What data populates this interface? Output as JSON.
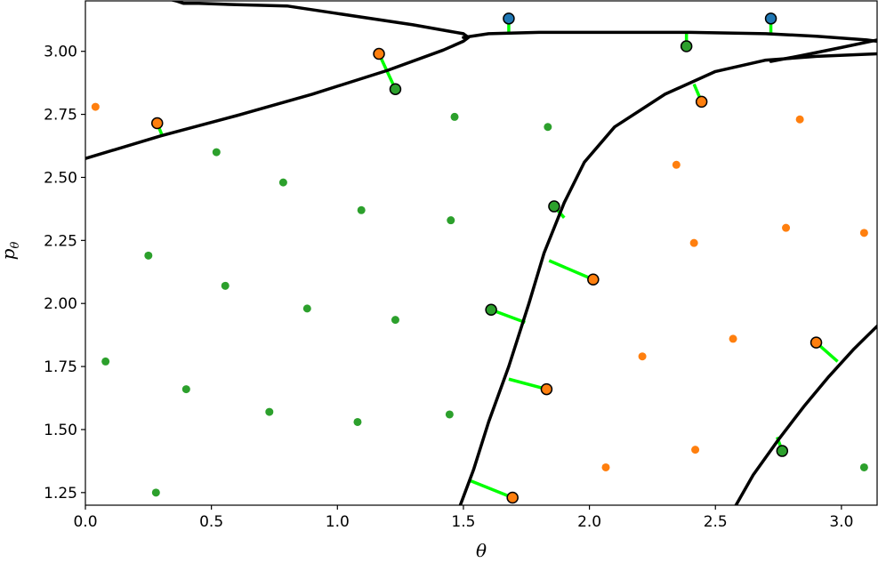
{
  "chart_data": {
    "type": "scatter",
    "xlabel": "θ",
    "ylabel": "p",
    "ylabel_sub": "θ",
    "xlim": [
      0.0,
      3.1416
    ],
    "ylim": [
      1.2,
      3.2
    ],
    "xticks": [
      0.0,
      0.5,
      1.0,
      1.5,
      2.0,
      2.5,
      3.0
    ],
    "xtick_labels": [
      "0.0",
      "0.5",
      "1.0",
      "1.5",
      "2.0",
      "2.5",
      "3.0"
    ],
    "yticks": [
      1.25,
      1.5,
      1.75,
      2.0,
      2.25,
      2.5,
      2.75,
      3.0
    ],
    "ytick_labels": [
      "1.25",
      "1.50",
      "1.75",
      "2.00",
      "2.25",
      "2.50",
      "2.75",
      "3.00"
    ],
    "grid": false,
    "colors": {
      "green": "#2ca02c",
      "orange": "#ff7f0e",
      "blue": "#1f77b4",
      "boundary": "#000000",
      "projection": "#00ff00"
    },
    "series": [
      {
        "role": "small-green",
        "points": [
          [
            0.08,
            1.77
          ],
          [
            0.25,
            2.19
          ],
          [
            0.28,
            1.25
          ],
          [
            0.4,
            1.66
          ],
          [
            0.52,
            2.6
          ],
          [
            0.555,
            2.07
          ],
          [
            0.73,
            1.57
          ],
          [
            0.785,
            2.48
          ],
          [
            0.88,
            1.98
          ],
          [
            1.08,
            1.53
          ],
          [
            1.095,
            2.37
          ],
          [
            1.23,
            1.935
          ],
          [
            1.445,
            1.56
          ],
          [
            1.45,
            2.33
          ],
          [
            1.465,
            2.74
          ],
          [
            1.835,
            2.7
          ],
          [
            3.09,
            1.35
          ]
        ]
      },
      {
        "role": "small-orange",
        "points": [
          [
            0.04,
            2.78
          ],
          [
            2.065,
            1.35
          ],
          [
            2.21,
            1.79
          ],
          [
            2.345,
            2.55
          ],
          [
            2.415,
            2.24
          ],
          [
            2.42,
            1.42
          ],
          [
            2.57,
            1.86
          ],
          [
            2.78,
            2.3
          ],
          [
            2.835,
            2.73
          ],
          [
            3.09,
            2.28
          ]
        ]
      },
      {
        "role": "outlined-orange",
        "points": [
          [
            0.285,
            2.715
          ],
          [
            1.165,
            2.99
          ],
          [
            2.445,
            2.8
          ],
          [
            2.015,
            2.095
          ],
          [
            1.83,
            1.66
          ],
          [
            1.695,
            1.23
          ],
          [
            2.9,
            1.845
          ]
        ]
      },
      {
        "role": "outlined-green",
        "points": [
          [
            1.23,
            2.85
          ],
          [
            2.385,
            3.02
          ],
          [
            1.86,
            2.385
          ],
          [
            1.61,
            1.975
          ],
          [
            2.765,
            1.415
          ]
        ]
      },
      {
        "role": "outlined-blue",
        "points": [
          [
            1.68,
            3.13
          ],
          [
            2.72,
            3.13
          ]
        ]
      }
    ],
    "projections": [
      [
        [
          0.285,
          2.715
        ],
        [
          0.305,
          2.665
        ]
      ],
      [
        [
          1.165,
          2.99
        ],
        [
          1.23,
          2.85
        ]
      ],
      [
        [
          1.68,
          3.13
        ],
        [
          1.68,
          3.075
        ]
      ],
      [
        [
          2.72,
          3.13
        ],
        [
          2.72,
          3.07
        ]
      ],
      [
        [
          2.385,
          3.02
        ],
        [
          2.385,
          3.07
        ]
      ],
      [
        [
          2.445,
          2.8
        ],
        [
          2.415,
          2.87
        ]
      ],
      [
        [
          1.86,
          2.385
        ],
        [
          1.9,
          2.34
        ]
      ],
      [
        [
          2.015,
          2.095
        ],
        [
          1.84,
          2.17
        ]
      ],
      [
        [
          1.61,
          1.975
        ],
        [
          1.745,
          1.925
        ]
      ],
      [
        [
          1.83,
          1.66
        ],
        [
          1.68,
          1.7
        ]
      ],
      [
        [
          1.695,
          1.23
        ],
        [
          1.52,
          1.3
        ]
      ],
      [
        [
          2.9,
          1.845
        ],
        [
          2.985,
          1.77
        ]
      ],
      [
        [
          2.765,
          1.415
        ],
        [
          2.745,
          1.47
        ]
      ]
    ],
    "boundaries": [
      [
        [
          0.0,
          2.575
        ],
        [
          0.3,
          2.665
        ],
        [
          0.6,
          2.745
        ],
        [
          0.9,
          2.83
        ],
        [
          1.2,
          2.925
        ],
        [
          1.42,
          3.005
        ],
        [
          1.5,
          3.04
        ],
        [
          1.52,
          3.055
        ],
        [
          1.5,
          3.07
        ],
        [
          1.3,
          3.105
        ],
        [
          1.0,
          3.15
        ],
        [
          0.8,
          3.18
        ],
        [
          0.6,
          3.185
        ],
        [
          0.45,
          3.19
        ],
        [
          0.39,
          3.19
        ],
        [
          0.36,
          3.2
        ],
        [
          0.32,
          3.21
        ]
      ],
      [
        [
          1.5,
          3.055
        ],
        [
          1.6,
          3.07
        ],
        [
          1.8,
          3.075
        ],
        [
          2.1,
          3.075
        ],
        [
          2.4,
          3.075
        ],
        [
          2.7,
          3.07
        ],
        [
          2.9,
          3.06
        ],
        [
          3.1,
          3.045
        ],
        [
          3.1416,
          3.04
        ]
      ],
      [
        [
          1.48,
          1.18
        ],
        [
          1.54,
          1.34
        ],
        [
          1.6,
          1.53
        ],
        [
          1.68,
          1.75
        ],
        [
          1.76,
          2.0
        ],
        [
          1.82,
          2.2
        ],
        [
          1.9,
          2.4
        ],
        [
          1.98,
          2.56
        ],
        [
          2.1,
          2.7
        ],
        [
          2.3,
          2.83
        ],
        [
          2.5,
          2.92
        ],
        [
          2.7,
          2.965
        ],
        [
          2.9,
          2.98
        ],
        [
          3.1416,
          2.99
        ]
      ],
      [
        [
          2.72,
          2.96
        ],
        [
          2.85,
          2.985
        ],
        [
          3.0,
          3.015
        ],
        [
          3.1416,
          3.045
        ]
      ],
      [
        [
          2.57,
          1.18
        ],
        [
          2.65,
          1.32
        ],
        [
          2.75,
          1.46
        ],
        [
          2.85,
          1.59
        ],
        [
          2.95,
          1.71
        ],
        [
          3.05,
          1.82
        ],
        [
          3.1416,
          1.91
        ]
      ]
    ]
  }
}
